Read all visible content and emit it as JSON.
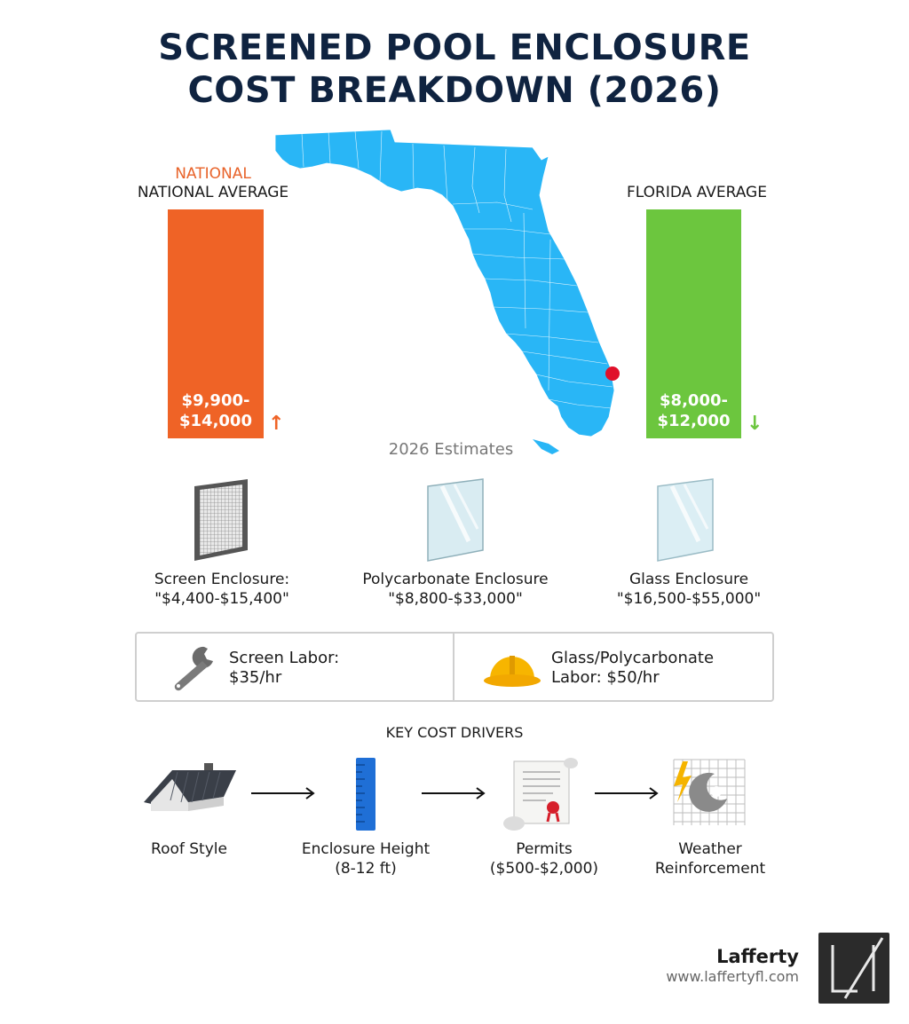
{
  "title": {
    "line1": "SCREENED POOL ENCLOSURE",
    "line2": "COST BREAKDOWN (2026)"
  },
  "comparison": {
    "national": {
      "tag": "NATIONAL",
      "label": "NATIONAL AVERAGE",
      "range_line1": "$9,900-",
      "range_line2": "$14,000",
      "trend": "up",
      "color": "#ef6326"
    },
    "florida": {
      "label": "FLORIDA AVERAGE",
      "range_line1": "$8,000-",
      "range_line2": "$12,000",
      "trend": "down",
      "color": "#6cc63e"
    },
    "map_color": "#29b6f6",
    "marker_color": "#e0102a",
    "footnote": "2026 Estimates"
  },
  "materials": [
    {
      "name": "Screen Enclosure:",
      "price": "\"$4,400-$15,400\"",
      "icon": "screen-panel-icon"
    },
    {
      "name": "Polycarbonate Enclosure",
      "price": "\"$8,800-$33,000\"",
      "icon": "polycarbonate-panel-icon"
    },
    {
      "name": "Glass Enclosure",
      "price": "\"$16,500-$55,000\"",
      "icon": "glass-panel-icon"
    }
  ],
  "labor": [
    {
      "line1": "Screen Labor:",
      "line2": "$35/hr",
      "icon": "wrench-icon"
    },
    {
      "line1": "Glass/Polycarbonate",
      "line2": "Labor: $50/hr",
      "icon": "hard-hat-icon"
    }
  ],
  "drivers": {
    "heading": "KEY COST DRIVERS",
    "items": [
      {
        "line1": "Roof Style",
        "line2": "",
        "icon": "roof-icon"
      },
      {
        "line1": "Enclosure Height",
        "line2": "(8-12 ft)",
        "icon": "ruler-icon"
      },
      {
        "line1": "Permits",
        "line2": "($500-$2,000)",
        "icon": "permit-scroll-icon"
      },
      {
        "line1": "Weather",
        "line2": "Reinforcement",
        "icon": "hurricane-icon"
      }
    ]
  },
  "brand": {
    "name": "Lafferty",
    "url": "www.laffertyfl.com"
  }
}
